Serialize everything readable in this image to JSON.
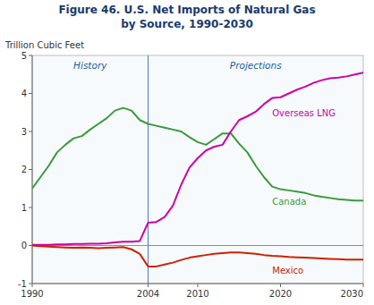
{
  "chart_data": {
    "type": "line",
    "title": "Figure 46.  U.S. Net Imports of Natural Gas",
    "subtitle": "by Source, 1990-2030",
    "y_label": "Trillion Cubic Feet",
    "annotations": [
      "History",
      "Projections"
    ],
    "x_divider": 2004,
    "y_baseline": 0,
    "xlim": [
      1990,
      2030
    ],
    "ylim": [
      -1,
      5
    ],
    "xticks": [
      1990,
      2004,
      2010,
      2020,
      2030
    ],
    "yticks": [
      -1,
      0,
      1,
      2,
      3,
      4,
      5
    ],
    "grid": false,
    "x": [
      1990,
      1991,
      1992,
      1993,
      1994,
      1995,
      1996,
      1997,
      1998,
      1999,
      2000,
      2001,
      2002,
      2003,
      2004,
      2005,
      2006,
      2007,
      2008,
      2009,
      2010,
      2011,
      2012,
      2013,
      2014,
      2015,
      2016,
      2017,
      2018,
      2019,
      2020,
      2021,
      2022,
      2023,
      2024,
      2025,
      2026,
      2027,
      2028,
      2029,
      2030
    ],
    "series": [
      {
        "name": "Canada",
        "color": "#3a9a3a",
        "values": [
          1.5,
          1.8,
          2.1,
          2.45,
          2.65,
          2.82,
          2.88,
          3.05,
          3.2,
          3.35,
          3.55,
          3.62,
          3.55,
          3.3,
          3.2,
          3.15,
          3.1,
          3.05,
          3.0,
          2.85,
          2.72,
          2.65,
          2.8,
          2.95,
          2.95,
          2.68,
          2.45,
          2.1,
          1.8,
          1.55,
          1.48,
          1.45,
          1.42,
          1.38,
          1.32,
          1.28,
          1.25,
          1.22,
          1.2,
          1.18,
          1.18
        ]
      },
      {
        "name": "Overseas LNG",
        "color": "#cc00aa",
        "values": [
          0.02,
          0.02,
          0.02,
          0.03,
          0.03,
          0.04,
          0.04,
          0.05,
          0.05,
          0.06,
          0.08,
          0.1,
          0.1,
          0.12,
          0.6,
          0.62,
          0.75,
          1.05,
          1.6,
          2.05,
          2.3,
          2.5,
          2.6,
          2.65,
          3.0,
          3.3,
          3.4,
          3.52,
          3.72,
          3.88,
          3.9,
          4.0,
          4.1,
          4.18,
          4.28,
          4.35,
          4.4,
          4.42,
          4.45,
          4.5,
          4.55
        ]
      },
      {
        "name": "Mexico",
        "color": "#cc2200",
        "values": [
          0.0,
          -0.02,
          -0.03,
          -0.04,
          -0.05,
          -0.06,
          -0.05,
          -0.06,
          -0.07,
          -0.06,
          -0.05,
          -0.04,
          -0.1,
          -0.22,
          -0.55,
          -0.55,
          -0.5,
          -0.45,
          -0.38,
          -0.32,
          -0.28,
          -0.25,
          -0.22,
          -0.2,
          -0.18,
          -0.18,
          -0.2,
          -0.22,
          -0.25,
          -0.27,
          -0.28,
          -0.3,
          -0.31,
          -0.32,
          -0.33,
          -0.34,
          -0.35,
          -0.36,
          -0.37,
          -0.37,
          -0.37
        ]
      }
    ]
  }
}
